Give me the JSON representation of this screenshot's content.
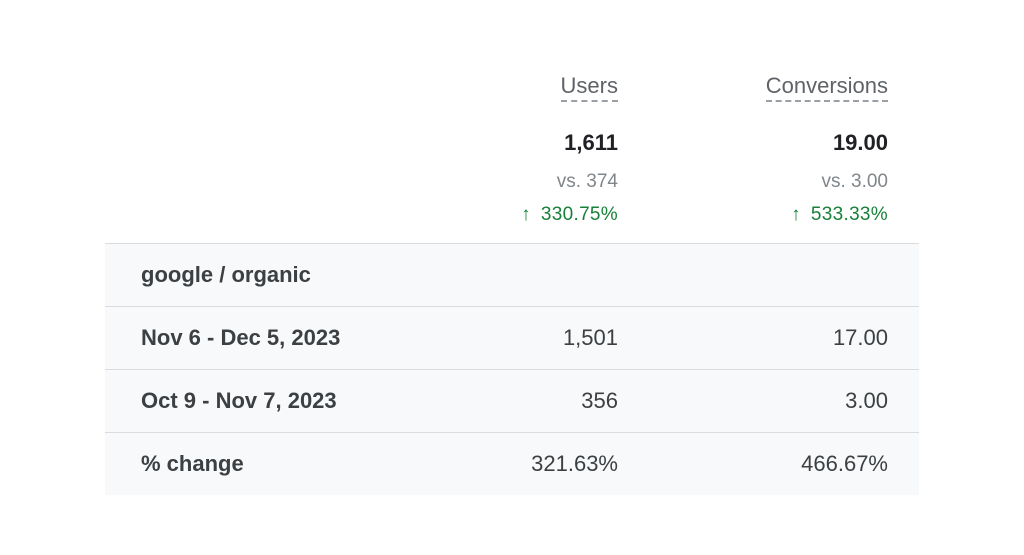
{
  "columns": {
    "users": "Users",
    "conversions": "Conversions"
  },
  "totals": {
    "users": {
      "value": "1,611",
      "vs": "vs. 374",
      "change": "330.75%",
      "arrow": "↑"
    },
    "conversions": {
      "value": "19.00",
      "vs": "vs. 3.00",
      "change": "533.33%",
      "arrow": "↑"
    }
  },
  "rows": [
    {
      "label": "google / organic",
      "users": "",
      "conversions": ""
    },
    {
      "label": "Nov 6 - Dec 5, 2023",
      "users": "1,501",
      "conversions": "17.00"
    },
    {
      "label": "Oct 9 - Nov 7, 2023",
      "users": "356",
      "conversions": "3.00"
    },
    {
      "label": "% change",
      "users": "321.63%",
      "conversions": "466.67%"
    }
  ],
  "colors": {
    "positive": "#188038",
    "muted": "#80868b",
    "row_background": "#f8f9fa",
    "divider": "#dadce0"
  }
}
